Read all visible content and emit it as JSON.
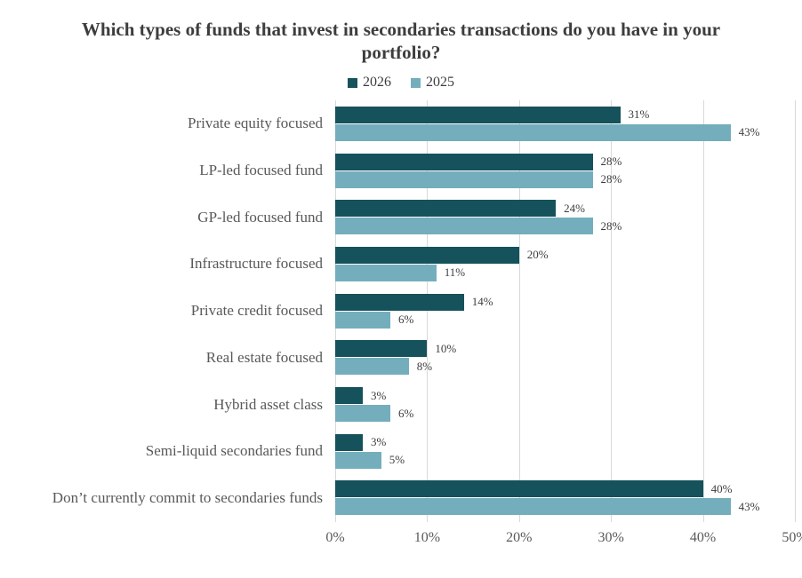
{
  "chart_data": {
    "type": "bar",
    "orientation": "horizontal",
    "title": "Which types of funds that invest in secondaries transactions do you have in your portfolio?",
    "categories": [
      "Private equity focused",
      "LP-led focused fund",
      "GP-led focused fund",
      "Infrastructure focused",
      "Private credit focused",
      "Real estate focused",
      "Hybrid asset class",
      "Semi-liquid secondaries fund",
      "Don’t currently commit to secondaries funds"
    ],
    "series": [
      {
        "name": "2026",
        "color": "#15525b",
        "values": [
          31,
          28,
          24,
          20,
          14,
          10,
          3,
          3,
          40
        ],
        "labels": [
          "31%",
          "28%",
          "24%",
          "20%",
          "14%",
          "10%",
          "3%",
          "3%",
          "40%"
        ]
      },
      {
        "name": "2025",
        "color": "#74aebd",
        "values": [
          43,
          28,
          28,
          11,
          6,
          8,
          6,
          5,
          43
        ],
        "labels": [
          "43%",
          "28%",
          "28%",
          "11%",
          "6%",
          "8%",
          "6%",
          "5%",
          "43%"
        ]
      }
    ],
    "xlim": [
      0,
      50
    ],
    "xtick_values": [
      0,
      10,
      20,
      30,
      40,
      50
    ],
    "xtick_labels": [
      "0%",
      "10%",
      "20%",
      "30%",
      "40%",
      "50%"
    ],
    "grid": "vertical",
    "gridline_color": "#d9d9d9",
    "legend_position": "top",
    "text_colors": {
      "title": "#3d3d3d",
      "category_labels": "#595959",
      "value_labels": "#3d3d3d",
      "axis_ticks": "#595959"
    },
    "background": "#ffffff"
  }
}
